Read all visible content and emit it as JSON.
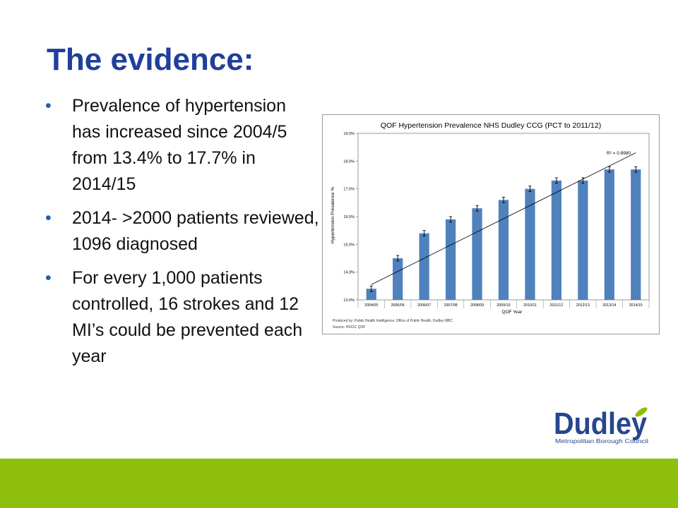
{
  "slide": {
    "title": "The evidence:",
    "bullets": [
      {
        "marker": "•",
        "text": "Prevalence of hypertension has increased since 2004/5 from 13.4% to 17.7% in 2014/15"
      },
      {
        "marker": "•",
        "text": "2014- >2000 patients reviewed, 1096 diagnosed"
      },
      {
        "marker": "•",
        "text": "For every 1,000 patients controlled, 16 strokes and 12 MI’s could be prevented each year"
      }
    ]
  },
  "chart_data": {
    "type": "bar",
    "title": "QOF Hypertension Prevalence NHS Dudley CCG (PCT to 2011/12)",
    "xlabel": "QOF Year",
    "ylabel": "Hypertension Prevalence %",
    "categories": [
      "2004/05",
      "2005/06",
      "2006/07",
      "2007/08",
      "2008/09",
      "2009/10",
      "2010/11",
      "2011/12",
      "2012/13",
      "2013/14",
      "2014/15"
    ],
    "values": [
      13.4,
      14.5,
      15.4,
      15.9,
      16.3,
      16.6,
      17.0,
      17.3,
      17.3,
      17.7,
      17.7
    ],
    "error": [
      0.1,
      0.1,
      0.1,
      0.1,
      0.1,
      0.1,
      0.1,
      0.1,
      0.1,
      0.1,
      0.1
    ],
    "ylim": [
      13.0,
      19.0
    ],
    "yticks": [
      13.0,
      14.0,
      15.0,
      16.0,
      17.0,
      18.0,
      19.0
    ],
    "ytick_labels": [
      "13.0%",
      "14.0%",
      "15.0%",
      "16.0%",
      "17.0%",
      "18.0%",
      "19.0%"
    ],
    "trendline": {
      "start": 13.55,
      "end": 18.3
    },
    "r2_label": "R² = 0.8980",
    "grid": false,
    "bar_color": "#4f81bd",
    "footnotes": [
      "Produced by: Public Health Intelligence, Office of Public Health, Dudley MBC",
      "Source: HSCIC QOF"
    ]
  },
  "logo": {
    "wordmark": "Dudley",
    "subtitle": "Metropolitan Borough Council",
    "blue": "#27468f",
    "green": "#8ebf0d"
  },
  "colors": {
    "title": "#1f3f9a",
    "bullet_marker": "#1f5fb4",
    "footer_bar": "#8ebf0d"
  }
}
